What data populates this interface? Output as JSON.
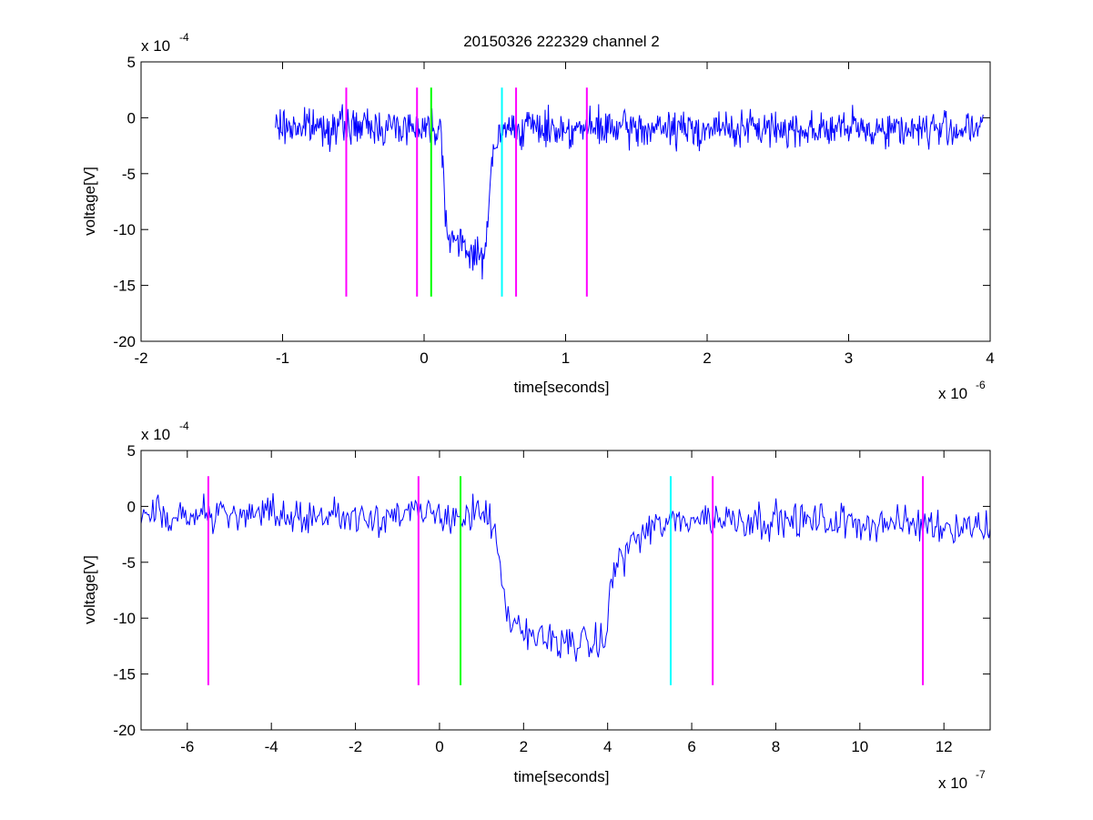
{
  "figure_title": "20150326 222329 channel 2",
  "colors": {
    "signal": "#0000ff",
    "marker_magenta": "#ff00ff",
    "marker_green": "#00ff00",
    "marker_cyan": "#00ffff",
    "axes": "#000000"
  },
  "chart_data": [
    {
      "type": "line",
      "title": "20150326 222329 channel 2",
      "xlabel": "time[seconds]",
      "ylabel": "voltage[V]",
      "x_exponent_label": "x 10",
      "x_exponent": "-6",
      "y_exponent_label": "x 10",
      "y_exponent": "-4",
      "xlim": [
        -2,
        4
      ],
      "ylim": [
        -20,
        5
      ],
      "xticks": [
        "-2",
        "-1",
        "0",
        "1",
        "2",
        "3",
        "4"
      ],
      "yticks": [
        "5",
        "0",
        "-5",
        "-10",
        "-15",
        "-20"
      ],
      "grid": false,
      "signal_range": [
        -1.05,
        3.95
      ],
      "signal_keypoints": [
        [
          -1.05,
          -0.8
        ],
        [
          -0.2,
          -0.8
        ],
        [
          0.12,
          -0.8
        ],
        [
          0.15,
          -8.0
        ],
        [
          0.16,
          -10.0
        ],
        [
          0.25,
          -11.5
        ],
        [
          0.35,
          -12.0
        ],
        [
          0.42,
          -13.0
        ],
        [
          0.48,
          -4.0
        ],
        [
          0.52,
          -2.0
        ],
        [
          0.6,
          -0.8
        ],
        [
          1.0,
          -1.0
        ],
        [
          2.0,
          -1.0
        ],
        [
          3.95,
          -1.0
        ]
      ],
      "markers": [
        {
          "x": -0.55,
          "y0": -16,
          "y1": 2.7,
          "color": "magenta"
        },
        {
          "x": -0.05,
          "y0": -16,
          "y1": 2.7,
          "color": "magenta"
        },
        {
          "x": 0.05,
          "y0": -16,
          "y1": 2.7,
          "color": "green"
        },
        {
          "x": 0.55,
          "y0": -16,
          "y1": 2.7,
          "color": "cyan"
        },
        {
          "x": 0.65,
          "y0": -16,
          "y1": 2.7,
          "color": "magenta"
        },
        {
          "x": 1.15,
          "y0": -16,
          "y1": 2.7,
          "color": "magenta"
        }
      ]
    },
    {
      "type": "line",
      "title": "",
      "xlabel": "time[seconds]",
      "ylabel": "voltage[V]",
      "x_exponent_label": "x 10",
      "x_exponent": "-7",
      "y_exponent_label": "x 10",
      "y_exponent": "-4",
      "xlim": [
        -7.1,
        13.1
      ],
      "ylim": [
        -20,
        5
      ],
      "xticks": [
        "-6",
        "-4",
        "-2",
        "0",
        "2",
        "4",
        "6",
        "8",
        "10",
        "12"
      ],
      "yticks": [
        "5",
        "0",
        "-5",
        "-10",
        "-15",
        "-20"
      ],
      "grid": false,
      "signal_range": [
        -7.1,
        13.1
      ],
      "signal_keypoints": [
        [
          -7.1,
          -0.8
        ],
        [
          1.2,
          -0.8
        ],
        [
          1.35,
          -3.0
        ],
        [
          1.5,
          -8.0
        ],
        [
          1.6,
          -10.0
        ],
        [
          2.0,
          -11.5
        ],
        [
          3.0,
          -12.0
        ],
        [
          3.8,
          -12.5
        ],
        [
          4.0,
          -11.0
        ],
        [
          4.1,
          -6.0
        ],
        [
          4.5,
          -3.5
        ],
        [
          5.0,
          -2.0
        ],
        [
          6.0,
          -1.0
        ],
        [
          13.1,
          -1.8
        ]
      ],
      "markers": [
        {
          "x": -5.5,
          "y0": -16,
          "y1": 2.7,
          "color": "magenta"
        },
        {
          "x": -0.5,
          "y0": -16,
          "y1": 2.7,
          "color": "magenta"
        },
        {
          "x": 0.5,
          "y0": -16,
          "y1": 2.7,
          "color": "green"
        },
        {
          "x": 5.5,
          "y0": -16,
          "y1": 2.7,
          "color": "cyan"
        },
        {
          "x": 6.5,
          "y0": -16,
          "y1": 2.7,
          "color": "magenta"
        },
        {
          "x": 11.5,
          "y0": -16,
          "y1": 2.7,
          "color": "magenta"
        }
      ]
    }
  ]
}
